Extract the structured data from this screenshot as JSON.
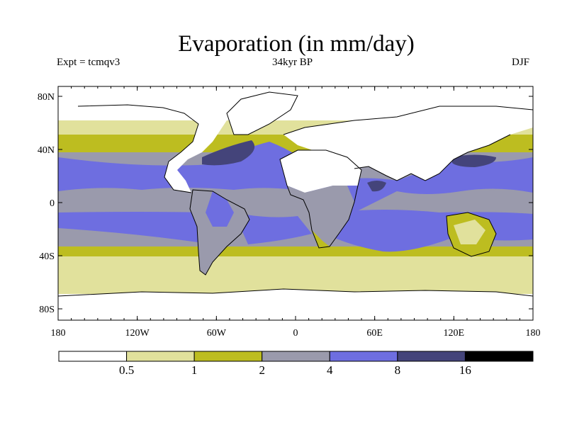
{
  "title": "Evaporation (in mm/day)",
  "expt_label": "Expt = tcmqv3",
  "period_label": "34kyr BP",
  "season_label": "DJF",
  "lat_ticks": [
    "80N",
    "40N",
    "0",
    "40S",
    "80S"
  ],
  "lon_ticks": [
    "180",
    "120W",
    "60W",
    "0",
    "60E",
    "120E",
    "180"
  ],
  "colorbar": {
    "bins": [
      "#ffffff",
      "#e1e19c",
      "#bdbd20",
      "#9a9aac",
      "#6e6ee0",
      "#44447a",
      "#000000"
    ],
    "labels": [
      "0.5",
      "1",
      "2",
      "4",
      "8",
      "16"
    ]
  }
}
